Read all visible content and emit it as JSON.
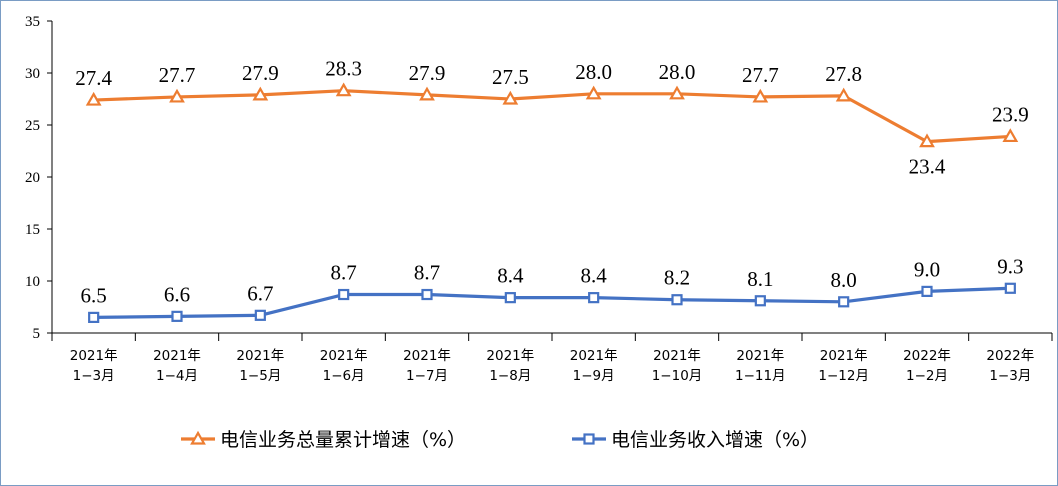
{
  "colors": {
    "total": "#ed7d31",
    "revenue": "#4472c4",
    "axis": "#000000",
    "frame": "#7a9cc4"
  },
  "chart_data": {
    "type": "line",
    "x": [
      "2021年\n1−3月",
      "2021年\n1−4月",
      "2021年\n1−5月",
      "2021年\n1−6月",
      "2021年\n1−7月",
      "2021年\n1−8月",
      "2021年\n1−9月",
      "2021年\n1−10月",
      "2021年\n1−11月",
      "2021年\n1−12月",
      "2022年\n1−2月",
      "2022年\n1−3月"
    ],
    "series": [
      {
        "name": "电信业务总量累计增速（%）",
        "marker": "triangle",
        "values": [
          27.4,
          27.7,
          27.9,
          28.3,
          27.9,
          27.5,
          28.0,
          28.0,
          27.7,
          27.8,
          23.4,
          23.9
        ]
      },
      {
        "name": "电信业务收入增速（%）",
        "marker": "square",
        "values": [
          6.5,
          6.6,
          6.7,
          8.7,
          8.7,
          8.4,
          8.4,
          8.2,
          8.1,
          8.0,
          9.0,
          9.3
        ]
      }
    ],
    "data_labels": [
      [
        "27.4",
        "27.7",
        "27.9",
        "28.3",
        "27.9",
        "27.5",
        "28.0",
        "28.0",
        "27.7",
        "27.8",
        "23.4",
        "23.9"
      ],
      [
        "6.5",
        "6.6",
        "6.7",
        "8.7",
        "8.7",
        "8.4",
        "8.4",
        "8.2",
        "8.1",
        "8.0",
        "9.0",
        "9.3"
      ]
    ],
    "y_ticks": [
      "5",
      "10",
      "15",
      "20",
      "25",
      "30",
      "35"
    ],
    "ylim": [
      5,
      35
    ],
    "grid": false,
    "legend_position": "bottom-center"
  }
}
